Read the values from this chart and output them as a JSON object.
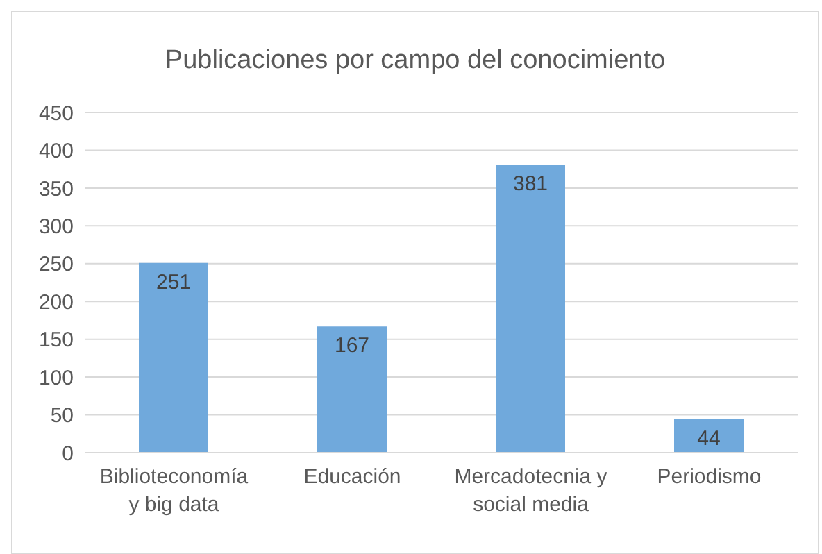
{
  "chart_data": {
    "type": "bar",
    "title": "Publicaciones por campo del conocimiento",
    "categories": [
      "Biblioteconomía y big data",
      "Educación",
      "Mercadotecnia y social media",
      "Periodismo"
    ],
    "values": [
      251,
      167,
      381,
      44
    ],
    "color": "#70a9dc",
    "ylim": [
      0,
      450
    ],
    "yticks": [
      0,
      50,
      100,
      150,
      200,
      250,
      300,
      350,
      400,
      450
    ],
    "grid": "y",
    "data_labels": true
  }
}
